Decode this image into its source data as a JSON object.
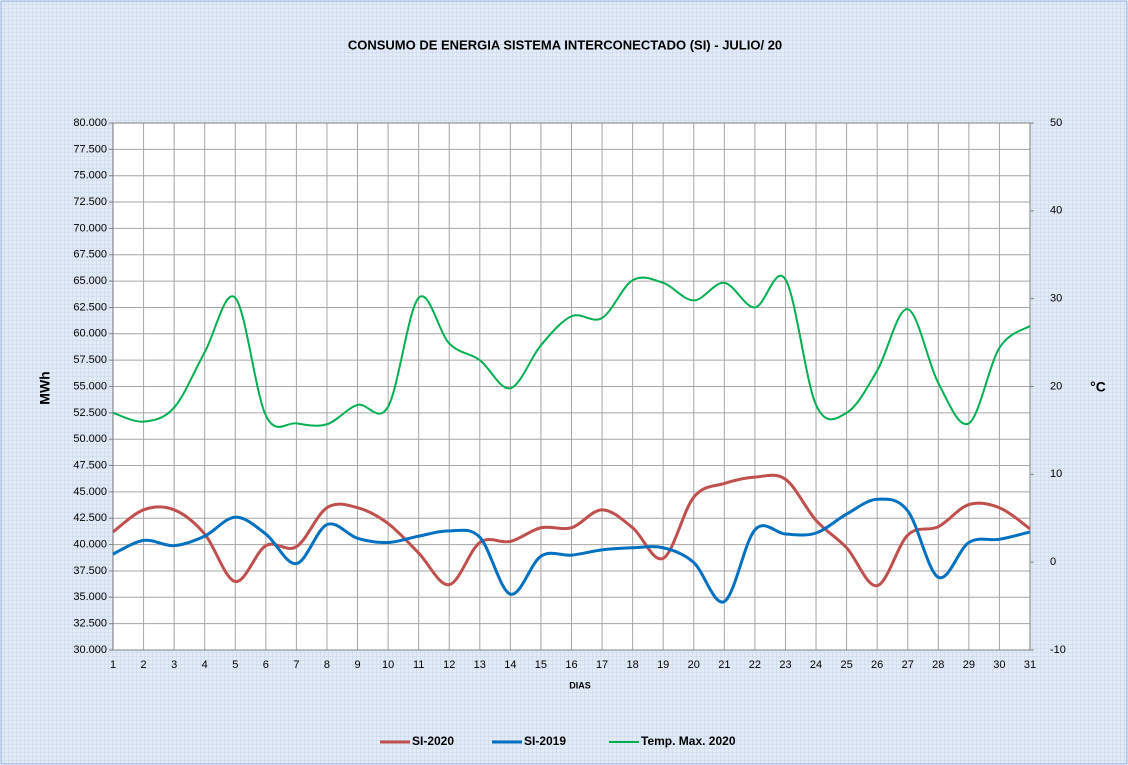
{
  "chart_data": {
    "type": "line",
    "title": "CONSUMO DE ENERGIA SISTEMA INTERCONECTADO (SI) -  JULIO/ 20",
    "x_label": "DIAS",
    "y_label": "MWh",
    "y2_label": "°C",
    "categories": [
      "1",
      "2",
      "3",
      "4",
      "5",
      "6",
      "7",
      "8",
      "9",
      "10",
      "11",
      "12",
      "13",
      "14",
      "15",
      "16",
      "17",
      "18",
      "19",
      "20",
      "21",
      "22",
      "23",
      "24",
      "25",
      "26",
      "27",
      "28",
      "29",
      "30",
      "31"
    ],
    "series": [
      {
        "name": "SI-2020",
        "color": "#c0504d",
        "values": [
          41200,
          43300,
          43300,
          41000,
          36500,
          39900,
          39800,
          43500,
          43500,
          42000,
          39200,
          36200,
          40200,
          40300,
          41600,
          41600,
          43300,
          41600,
          38700,
          44500,
          45800,
          46400,
          46200,
          42300,
          39700,
          36100,
          40900,
          41700,
          43800,
          43500,
          41500
        ]
      },
      {
        "name": "SI-2019",
        "color": "#0070c0",
        "values": [
          39100,
          40400,
          39900,
          40800,
          42600,
          41000,
          38200,
          41900,
          40600,
          40200,
          40800,
          41300,
          40700,
          35300,
          38900,
          39000,
          39500,
          39700,
          39700,
          38300,
          34600,
          41400,
          41000,
          41100,
          42900,
          44300,
          43200,
          36900,
          40200,
          40500,
          41200
        ]
      },
      {
        "name": "Temp. Max. 2020",
        "color": "#00b050",
        "axis": "y2",
        "values": [
          17.0,
          16.0,
          17.6,
          23.9,
          30.1,
          16.7,
          15.8,
          15.7,
          17.9,
          17.7,
          30.1,
          24.9,
          23.0,
          19.8,
          24.7,
          28.0,
          27.8,
          32.1,
          31.8,
          29.8,
          31.8,
          29.0,
          32.2,
          17.9,
          17.0,
          21.8,
          28.8,
          20.4,
          15.8,
          24.4,
          26.9
        ]
      }
    ],
    "ylim": [
      30000,
      80000
    ],
    "yticks": [
      {
        "value": 30000,
        "label": "30.000"
      },
      {
        "value": 32500,
        "label": "32.500"
      },
      {
        "value": 35000,
        "label": "35.000"
      },
      {
        "value": 37500,
        "label": "37.500"
      },
      {
        "value": 40000,
        "label": "40.000"
      },
      {
        "value": 42500,
        "label": "42.500"
      },
      {
        "value": 45000,
        "label": "45.000"
      },
      {
        "value": 47500,
        "label": "47.500"
      },
      {
        "value": 50000,
        "label": "50.000"
      },
      {
        "value": 52500,
        "label": "52.500"
      },
      {
        "value": 55000,
        "label": "55.000"
      },
      {
        "value": 57500,
        "label": "57.500"
      },
      {
        "value": 60000,
        "label": "60.000"
      },
      {
        "value": 62500,
        "label": "62.500"
      },
      {
        "value": 65000,
        "label": "65.000"
      },
      {
        "value": 67500,
        "label": "67.500"
      },
      {
        "value": 70000,
        "label": "70.000"
      },
      {
        "value": 72500,
        "label": "72.500"
      },
      {
        "value": 75000,
        "label": "75.000"
      },
      {
        "value": 77500,
        "label": "77.500"
      },
      {
        "value": 80000,
        "label": "80.000"
      }
    ],
    "y2lim": [
      -10,
      50
    ],
    "y2ticks": [
      -10,
      0,
      10,
      20,
      30,
      40,
      50
    ],
    "grid": true,
    "legend": "bottom"
  }
}
